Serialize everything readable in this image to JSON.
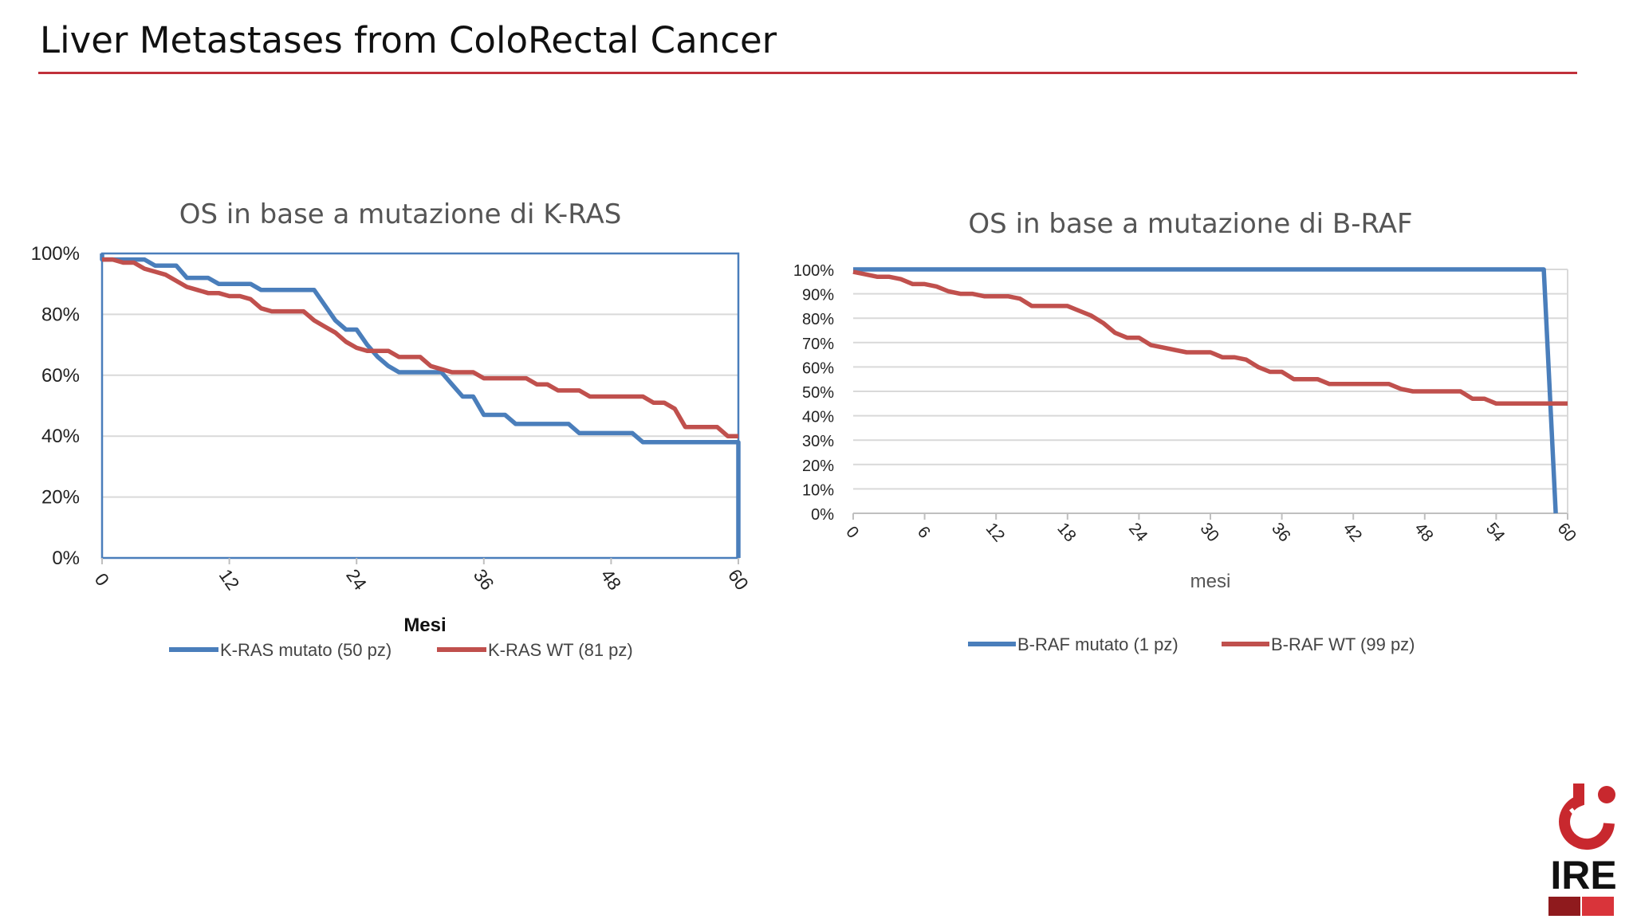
{
  "slide": {
    "title": "Liver Metastases from ColoRectal Cancer",
    "accent_color": "#c0303a"
  },
  "logo": {
    "text": "IRE",
    "icon": "ire-logo-icon"
  },
  "chart_data": [
    {
      "type": "line",
      "title": "OS in base a mutazione di K-RAS",
      "xlabel": "Mesi",
      "ylabel": "",
      "xlim": [
        0,
        60
      ],
      "ylim": [
        0,
        100
      ],
      "x_ticks": [
        0,
        12,
        24,
        36,
        48,
        60
      ],
      "y_ticks": [
        0,
        20,
        40,
        60,
        80,
        100
      ],
      "y_tick_labels": [
        "0%",
        "20%",
        "40%",
        "60%",
        "80%",
        "100%"
      ],
      "grid": true,
      "legend": "bottom",
      "series": [
        {
          "name": "K-RAS mutato (50 pz)",
          "color": "#4a7ebb",
          "points": [
            [
              0,
              100
            ],
            [
              0,
              98
            ],
            [
              4,
              98
            ],
            [
              5,
              96
            ],
            [
              7,
              96
            ],
            [
              8,
              92
            ],
            [
              10,
              92
            ],
            [
              11,
              90
            ],
            [
              14,
              90
            ],
            [
              15,
              88
            ],
            [
              20,
              88
            ],
            [
              21,
              83
            ],
            [
              22,
              78
            ],
            [
              23,
              75
            ],
            [
              24,
              75
            ],
            [
              25,
              70
            ],
            [
              26,
              66
            ],
            [
              27,
              63
            ],
            [
              28,
              61
            ],
            [
              32,
              61
            ],
            [
              33,
              57
            ],
            [
              34,
              53
            ],
            [
              35,
              53
            ],
            [
              36,
              47
            ],
            [
              38,
              47
            ],
            [
              39,
              44
            ],
            [
              44,
              44
            ],
            [
              45,
              41
            ],
            [
              50,
              41
            ],
            [
              51,
              38
            ],
            [
              60,
              38
            ],
            [
              60,
              0
            ]
          ]
        },
        {
          "name": "K-RAS WT (81 pz)",
          "color": "#c0504d",
          "points": [
            [
              0,
              98
            ],
            [
              1,
              98
            ],
            [
              2,
              97
            ],
            [
              3,
              97
            ],
            [
              4,
              95
            ],
            [
              5,
              94
            ],
            [
              6,
              93
            ],
            [
              7,
              91
            ],
            [
              8,
              89
            ],
            [
              9,
              88
            ],
            [
              10,
              87
            ],
            [
              11,
              87
            ],
            [
              12,
              86
            ],
            [
              13,
              86
            ],
            [
              14,
              85
            ],
            [
              15,
              82
            ],
            [
              16,
              81
            ],
            [
              19,
              81
            ],
            [
              20,
              78
            ],
            [
              21,
              76
            ],
            [
              22,
              74
            ],
            [
              23,
              71
            ],
            [
              24,
              69
            ],
            [
              25,
              68
            ],
            [
              27,
              68
            ],
            [
              28,
              66
            ],
            [
              30,
              66
            ],
            [
              31,
              63
            ],
            [
              32,
              62
            ],
            [
              33,
              61
            ],
            [
              35,
              61
            ],
            [
              36,
              59
            ],
            [
              40,
              59
            ],
            [
              41,
              57
            ],
            [
              42,
              57
            ],
            [
              43,
              55
            ],
            [
              45,
              55
            ],
            [
              46,
              53
            ],
            [
              51,
              53
            ],
            [
              52,
              51
            ],
            [
              53,
              51
            ],
            [
              54,
              49
            ],
            [
              55,
              43
            ],
            [
              58,
              43
            ],
            [
              59,
              40
            ],
            [
              60,
              40
            ]
          ]
        }
      ]
    },
    {
      "type": "line",
      "title": "OS in base a mutazione di B-RAF",
      "xlabel": "mesi",
      "ylabel": "",
      "xlim": [
        0,
        60
      ],
      "ylim": [
        0,
        100
      ],
      "x_ticks": [
        0,
        6,
        12,
        18,
        24,
        30,
        36,
        42,
        48,
        54,
        60
      ],
      "y_ticks": [
        0,
        10,
        20,
        30,
        40,
        50,
        60,
        70,
        80,
        90,
        100
      ],
      "y_tick_labels": [
        "0%",
        "10%",
        "20%",
        "30%",
        "40%",
        "50%",
        "60%",
        "70%",
        "80%",
        "90%",
        "100%"
      ],
      "grid": true,
      "legend": "bottom",
      "series": [
        {
          "name": "B-RAF mutato (1 pz)",
          "color": "#4a7ebb",
          "points": [
            [
              0,
              100
            ],
            [
              58,
              100
            ],
            [
              59,
              0
            ]
          ]
        },
        {
          "name": "B-RAF WT (99 pz)",
          "color": "#c0504d",
          "points": [
            [
              0,
              99
            ],
            [
              1,
              98
            ],
            [
              2,
              97
            ],
            [
              3,
              97
            ],
            [
              4,
              96
            ],
            [
              5,
              94
            ],
            [
              6,
              94
            ],
            [
              7,
              93
            ],
            [
              8,
              91
            ],
            [
              9,
              90
            ],
            [
              10,
              90
            ],
            [
              11,
              89
            ],
            [
              13,
              89
            ],
            [
              14,
              88
            ],
            [
              15,
              85
            ],
            [
              18,
              85
            ],
            [
              19,
              83
            ],
            [
              20,
              81
            ],
            [
              21,
              78
            ],
            [
              22,
              74
            ],
            [
              23,
              72
            ],
            [
              24,
              72
            ],
            [
              25,
              69
            ],
            [
              26,
              68
            ],
            [
              27,
              67
            ],
            [
              28,
              66
            ],
            [
              30,
              66
            ],
            [
              31,
              64
            ],
            [
              32,
              64
            ],
            [
              33,
              63
            ],
            [
              34,
              60
            ],
            [
              35,
              58
            ],
            [
              36,
              58
            ],
            [
              37,
              55
            ],
            [
              39,
              55
            ],
            [
              40,
              53
            ],
            [
              44,
              53
            ],
            [
              45,
              53
            ],
            [
              46,
              51
            ],
            [
              47,
              50
            ],
            [
              51,
              50
            ],
            [
              52,
              47
            ],
            [
              53,
              47
            ],
            [
              54,
              45
            ],
            [
              60,
              45
            ]
          ]
        }
      ]
    }
  ]
}
